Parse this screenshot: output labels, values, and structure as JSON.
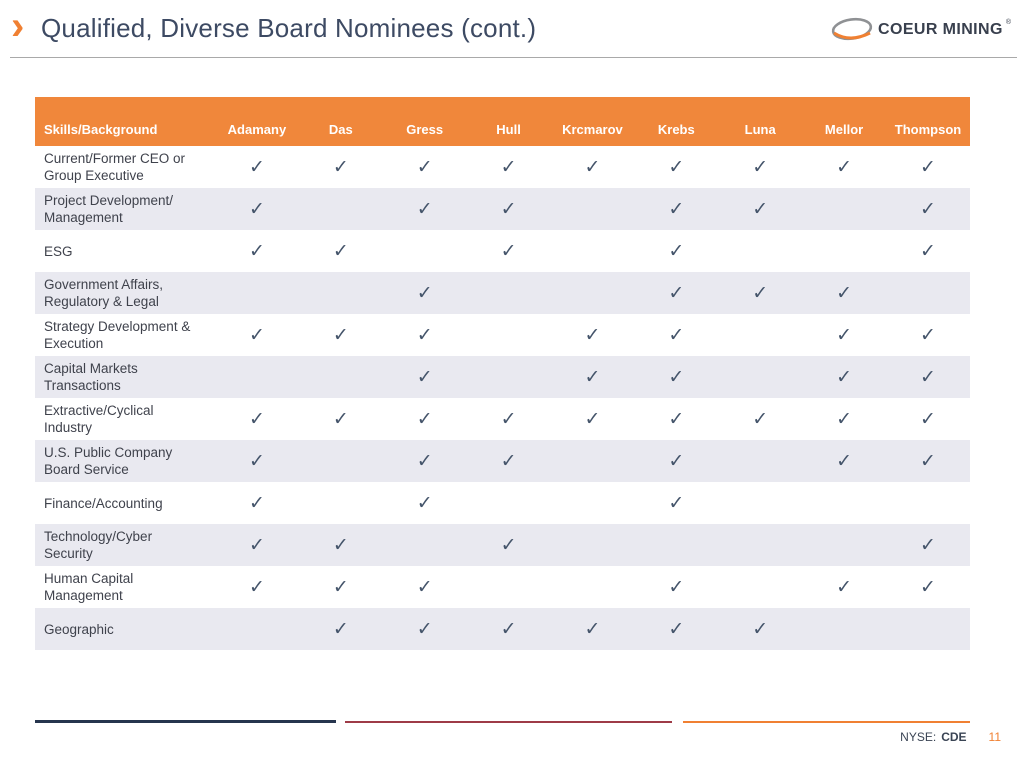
{
  "title": {
    "chevron": "›",
    "text": "Qualified, Diverse Board Nominees (cont.)"
  },
  "logo": {
    "name": "COEUR MINING",
    "registered": "®"
  },
  "check_glyph": "✓",
  "table": {
    "columns": [
      "Skills/Background",
      "Adamany",
      "Das",
      "Gress",
      "Hull",
      "Krcmarov",
      "Krebs",
      "Luna",
      "Mellor",
      "Thompson"
    ],
    "rows": [
      {
        "label": "Current/Former CEO or Group Executive",
        "checks": [
          1,
          1,
          1,
          1,
          1,
          1,
          1,
          1,
          1
        ]
      },
      {
        "label": "Project Development/ Management",
        "checks": [
          1,
          0,
          1,
          1,
          0,
          1,
          1,
          0,
          1
        ]
      },
      {
        "label": "ESG",
        "checks": [
          1,
          1,
          0,
          1,
          0,
          1,
          0,
          0,
          1
        ]
      },
      {
        "label": "Government Affairs, Regulatory & Legal",
        "checks": [
          0,
          0,
          1,
          0,
          0,
          1,
          1,
          1,
          0
        ]
      },
      {
        "label": "Strategy Development & Execution",
        "checks": [
          1,
          1,
          1,
          0,
          1,
          1,
          0,
          1,
          1
        ]
      },
      {
        "label": "Capital Markets Transactions",
        "checks": [
          0,
          0,
          1,
          0,
          1,
          1,
          0,
          1,
          1
        ]
      },
      {
        "label": "Extractive/Cyclical Industry",
        "checks": [
          1,
          1,
          1,
          1,
          1,
          1,
          1,
          1,
          1
        ]
      },
      {
        "label": "U.S. Public Company Board Service",
        "checks": [
          1,
          0,
          1,
          1,
          0,
          1,
          0,
          1,
          1
        ]
      },
      {
        "label": "Finance/Accounting",
        "checks": [
          1,
          0,
          1,
          0,
          0,
          1,
          0,
          0,
          0
        ]
      },
      {
        "label": "Technology/Cyber Security",
        "checks": [
          1,
          1,
          0,
          1,
          0,
          0,
          0,
          0,
          1
        ]
      },
      {
        "label": "Human Capital Management",
        "checks": [
          1,
          1,
          1,
          0,
          0,
          1,
          0,
          1,
          1
        ]
      },
      {
        "label": "Geographic",
        "checks": [
          0,
          1,
          1,
          1,
          1,
          1,
          1,
          0,
          0
        ]
      }
    ]
  },
  "footer": {
    "exchange_label": "NYSE:",
    "ticker": "CDE",
    "page_number": "11"
  },
  "colors": {
    "accent_orange": "#F08032",
    "header_orange": "#F0873B",
    "row_alt": "#E9E9F0",
    "check": "#44546A",
    "title_text": "#3D4A63",
    "line_navy": "#26354E",
    "line_maroon": "#9E3B47"
  }
}
